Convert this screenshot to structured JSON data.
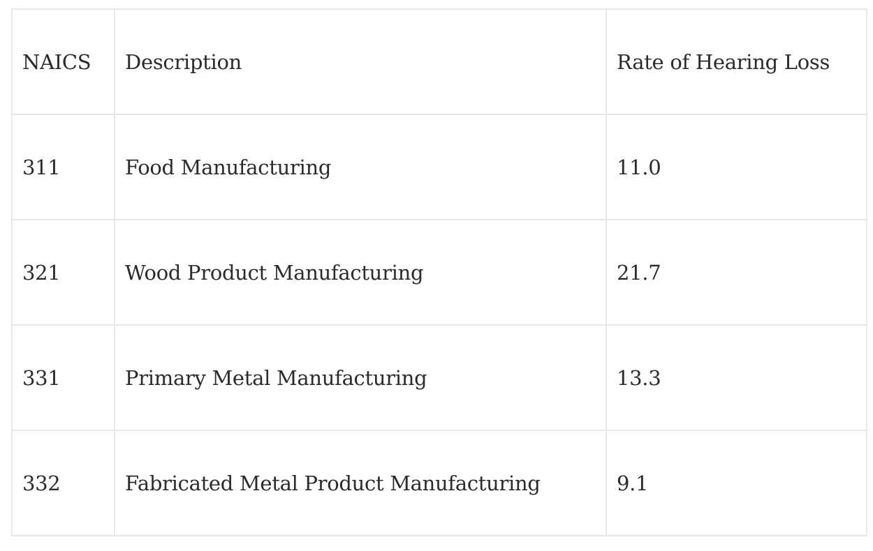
{
  "table": {
    "headers": [
      "NAICS",
      "Description",
      "Rate of Hearing Loss"
    ],
    "rows": [
      [
        "311",
        "Food Manufacturing",
        "11.0"
      ],
      [
        "321",
        "Wood Product Manufacturing",
        "21.7"
      ],
      [
        "331",
        "Primary Metal Manufacturing",
        "13.3"
      ],
      [
        "332",
        "Fabricated Metal Product Manufacturing",
        "9.1"
      ]
    ]
  }
}
